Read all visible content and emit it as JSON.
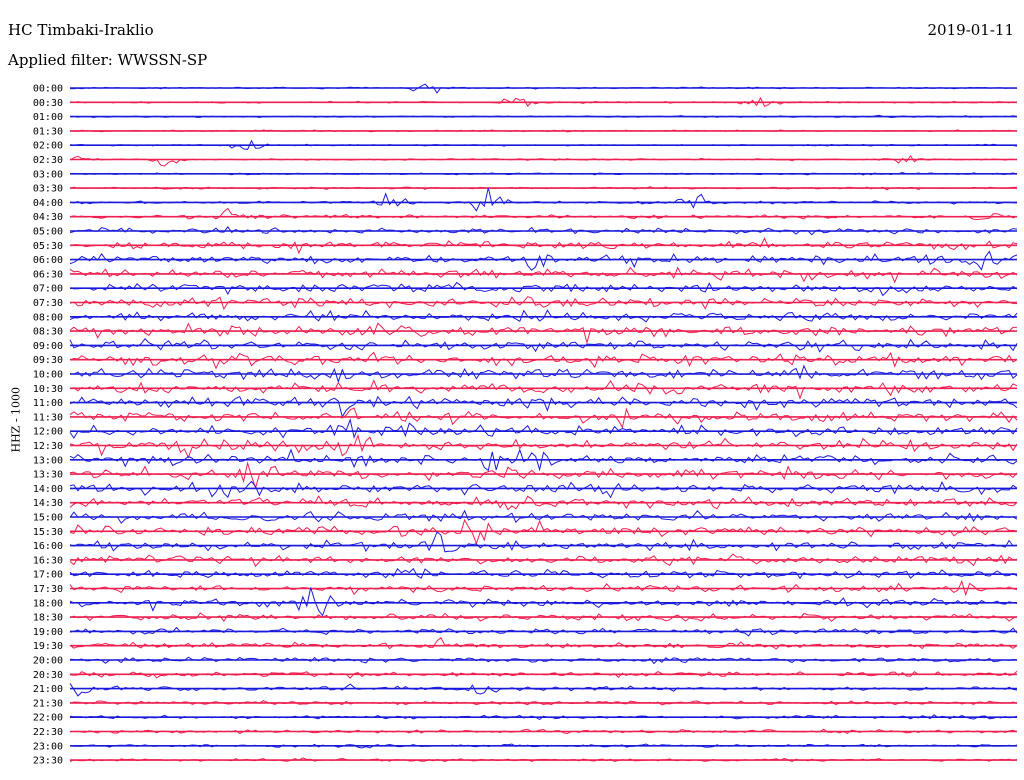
{
  "header": {
    "station": "HC Timbaki-Iraklio",
    "date": "2019-01-11",
    "filter": "Applied filter: WWSSN-SP"
  },
  "axis": {
    "ylabel": "HHZ - 1000"
  },
  "colors": {
    "even_trace": "#1a1adc",
    "odd_trace": "#ee1f4f",
    "text": "#000000"
  },
  "chart_data": {
    "type": "line",
    "title": "HC Timbaki-Iraklio",
    "subtitle": "Applied filter: WWSSN-SP",
    "ylabel": "HHZ - 1000",
    "xlabel": "",
    "grid": false,
    "legend": "none",
    "categories": [
      "00:00",
      "00:30",
      "01:00",
      "01:30",
      "02:00",
      "02:30",
      "03:00",
      "03:30",
      "04:00",
      "04:30",
      "05:00",
      "05:30",
      "06:00",
      "06:30",
      "07:00",
      "07:30",
      "08:00",
      "08:30",
      "09:00",
      "09:30",
      "10:00",
      "10:30",
      "11:00",
      "11:30",
      "12:00",
      "12:30",
      "13:00",
      "13:30",
      "14:00",
      "14:30",
      "15:00",
      "15:30",
      "16:00",
      "16:30",
      "17:00",
      "17:30",
      "18:00",
      "18:30",
      "19:00",
      "19:30",
      "20:00",
      "20:30",
      "21:00",
      "21:30",
      "22:00",
      "22:30",
      "23:00",
      "23:30"
    ],
    "noise_level": [
      0.08,
      0.08,
      0.08,
      0.08,
      0.08,
      0.09,
      0.1,
      0.12,
      0.2,
      0.3,
      0.45,
      0.7,
      0.85,
      0.9,
      0.9,
      0.9,
      0.9,
      0.95,
      0.95,
      1.0,
      1.0,
      1.0,
      1.0,
      1.0,
      1.0,
      1.0,
      1.0,
      0.95,
      0.95,
      0.9,
      0.85,
      0.85,
      0.8,
      0.75,
      0.7,
      0.65,
      0.6,
      0.55,
      0.55,
      0.5,
      0.45,
      0.4,
      0.35,
      0.3,
      0.25,
      0.25,
      0.22,
      0.2
    ],
    "events": [
      {
        "row": 0,
        "x": 0.38,
        "amp": 1.3
      },
      {
        "row": 1,
        "x": 0.73,
        "amp": 1.4
      },
      {
        "row": 1,
        "x": 0.47,
        "amp": 0.9
      },
      {
        "row": 4,
        "x": 0.19,
        "amp": 1.8
      },
      {
        "row": 5,
        "x": 0.01,
        "amp": 1.0
      },
      {
        "row": 5,
        "x": 0.1,
        "amp": 1.0
      },
      {
        "row": 5,
        "x": 0.88,
        "amp": 1.0
      },
      {
        "row": 8,
        "x": 0.34,
        "amp": 1.8
      },
      {
        "row": 8,
        "x": 0.44,
        "amp": 2.2
      },
      {
        "row": 8,
        "x": 0.66,
        "amp": 1.6
      },
      {
        "row": 9,
        "x": 0.17,
        "amp": 1.8
      },
      {
        "row": 9,
        "x": 0.97,
        "amp": 1.6
      },
      {
        "row": 12,
        "x": 0.49,
        "amp": 1.6
      },
      {
        "row": 12,
        "x": 0.97,
        "amp": 1.8
      },
      {
        "row": 17,
        "x": 0.34,
        "amp": 1.6
      },
      {
        "row": 20,
        "x": 0.28,
        "amp": 1.6
      },
      {
        "row": 20,
        "x": 0.77,
        "amp": 1.8
      },
      {
        "row": 22,
        "x": 0.29,
        "amp": 1.6
      },
      {
        "row": 24,
        "x": 0.29,
        "amp": 1.8
      },
      {
        "row": 25,
        "x": 0.13,
        "amp": 2.0
      },
      {
        "row": 25,
        "x": 0.3,
        "amp": 1.8
      },
      {
        "row": 26,
        "x": 0.45,
        "amp": 2.0
      },
      {
        "row": 26,
        "x": 0.49,
        "amp": 2.0
      },
      {
        "row": 27,
        "x": 0.2,
        "amp": 2.2
      },
      {
        "row": 28,
        "x": 0.17,
        "amp": 1.6
      },
      {
        "row": 29,
        "x": 0.47,
        "amp": 2.4
      },
      {
        "row": 31,
        "x": 0.43,
        "amp": 1.6
      },
      {
        "row": 32,
        "x": 0.39,
        "amp": 1.8
      },
      {
        "row": 34,
        "x": 0.36,
        "amp": 1.8
      },
      {
        "row": 35,
        "x": 0.95,
        "amp": 1.6
      },
      {
        "row": 36,
        "x": 0.26,
        "amp": 2.0
      },
      {
        "row": 39,
        "x": 0.39,
        "amp": 1.4
      },
      {
        "row": 42,
        "x": 0.01,
        "amp": 1.2
      },
      {
        "row": 42,
        "x": 0.43,
        "amp": 1.2
      }
    ]
  }
}
